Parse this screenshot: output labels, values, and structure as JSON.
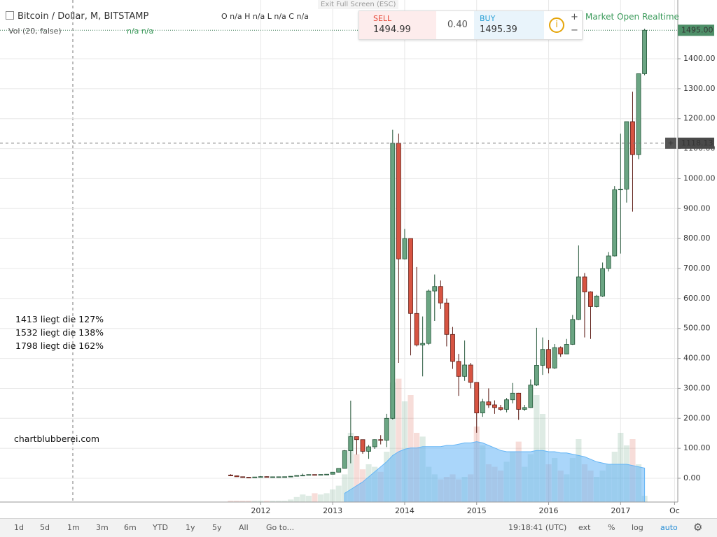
{
  "chart_data": {
    "type": "candlestick",
    "x": [
      "2011-08",
      "2011-09",
      "2011-10",
      "2011-11",
      "2011-12",
      "2012-01",
      "2012-02",
      "2012-03",
      "2012-04",
      "2012-05",
      "2012-06",
      "2012-07",
      "2012-08",
      "2012-09",
      "2012-10",
      "2012-11",
      "2012-12",
      "2013-01",
      "2013-02",
      "2013-03",
      "2013-04",
      "2013-05",
      "2013-06",
      "2013-07",
      "2013-08",
      "2013-09",
      "2013-10",
      "2013-11",
      "2013-12",
      "2014-01",
      "2014-02",
      "2014-03",
      "2014-04",
      "2014-05",
      "2014-06",
      "2014-07",
      "2014-08",
      "2014-09",
      "2014-10",
      "2014-11",
      "2014-12",
      "2015-01",
      "2015-02",
      "2015-03",
      "2015-04",
      "2015-05",
      "2015-06",
      "2015-07",
      "2015-08",
      "2015-09",
      "2015-10",
      "2015-11",
      "2015-12",
      "2016-01",
      "2016-02",
      "2016-03",
      "2016-04",
      "2016-05",
      "2016-06",
      "2016-07",
      "2016-08",
      "2016-09",
      "2016-10",
      "2016-11",
      "2016-12",
      "2017-01",
      "2017-02",
      "2017-03",
      "2017-04",
      "2017-05"
    ],
    "open": [
      10.9,
      8.2,
      5.1,
      3.3,
      3.0,
      4.3,
      5.5,
      4.9,
      4.9,
      5.0,
      5.2,
      6.7,
      9.3,
      10.1,
      12.4,
      11.2,
      12.6,
      13.5,
      20.4,
      33,
      92,
      139,
      129,
      90,
      105,
      129,
      127,
      200,
      1118,
      732,
      800,
      550,
      445,
      450,
      625,
      640,
      585,
      480,
      390,
      340,
      378,
      320,
      218,
      255,
      245,
      236,
      230,
      262,
      284,
      230,
      236,
      311,
      377,
      430,
      368,
      436,
      415,
      447,
      530,
      672,
      622,
      573,
      608,
      700,
      742,
      963,
      965,
      1190,
      1080,
      1350
    ],
    "high": [
      13.5,
      8.9,
      5.3,
      3.6,
      4.6,
      7.4,
      6.3,
      5.3,
      5.4,
      5.2,
      6.8,
      9.7,
      15.4,
      12.8,
      12.5,
      12.8,
      13.9,
      21,
      33,
      94,
      259,
      139,
      129,
      111,
      130,
      144,
      215,
      1163,
      1150,
      832,
      800,
      705,
      540,
      630,
      680,
      660,
      600,
      505,
      415,
      460,
      385,
      320,
      265,
      300,
      260,
      245,
      268,
      318,
      285,
      245,
      330,
      502,
      470,
      462,
      448,
      440,
      465,
      545,
      777,
      685,
      624,
      612,
      720,
      755,
      975,
      1150,
      1190,
      1290,
      1350,
      1500
    ],
    "low": [
      7.1,
      4.5,
      2.1,
      2.0,
      2.8,
      4.2,
      4.3,
      4.6,
      4.8,
      4.9,
      5.2,
      6.4,
      7.1,
      9.8,
      9.9,
      10.0,
      12.4,
      13.4,
      19.6,
      33,
      50,
      79,
      82,
      65,
      98,
      113,
      104,
      196,
      385,
      730,
      410,
      440,
      340,
      445,
      525,
      565,
      440,
      365,
      275,
      325,
      300,
      152,
      205,
      235,
      215,
      225,
      220,
      250,
      195,
      225,
      235,
      308,
      345,
      350,
      365,
      405,
      415,
      445,
      528,
      470,
      465,
      570,
      605,
      690,
      740,
      750,
      920,
      890,
      1065,
      1345
    ],
    "close": [
      8.2,
      5.1,
      3.3,
      3.0,
      4.3,
      5.5,
      4.9,
      4.9,
      5.0,
      5.2,
      6.7,
      9.3,
      10.1,
      12.4,
      11.2,
      12.6,
      13.5,
      20.4,
      33,
      92,
      139,
      129,
      90,
      105,
      129,
      127,
      200,
      1118,
      732,
      800,
      550,
      445,
      450,
      625,
      640,
      585,
      480,
      390,
      340,
      378,
      320,
      218,
      255,
      245,
      236,
      230,
      262,
      284,
      230,
      236,
      311,
      377,
      430,
      368,
      436,
      415,
      447,
      530,
      672,
      622,
      573,
      608,
      700,
      742,
      963,
      965,
      1190,
      1080,
      1350,
      1495
    ],
    "volume": [
      1,
      1,
      1,
      1,
      1,
      1,
      1,
      1,
      1,
      1,
      2,
      4,
      6,
      5,
      7,
      6,
      7,
      10,
      13,
      22,
      55,
      38,
      26,
      30,
      28,
      24,
      40,
      95,
      98,
      80,
      85,
      55,
      52,
      28,
      22,
      18,
      20,
      22,
      18,
      20,
      22,
      60,
      45,
      30,
      28,
      25,
      32,
      40,
      48,
      28,
      38,
      85,
      70,
      30,
      35,
      25,
      22,
      35,
      50,
      30,
      25,
      20,
      25,
      30,
      40,
      55,
      45,
      50,
      30,
      5
    ],
    "volume_ma": [
      null,
      null,
      null,
      null,
      null,
      null,
      null,
      null,
      null,
      null,
      null,
      null,
      null,
      null,
      null,
      null,
      null,
      null,
      null,
      7,
      10,
      13,
      16,
      20,
      24,
      28,
      32,
      37,
      40,
      42,
      43,
      43,
      44,
      44,
      44,
      44,
      45,
      45,
      46,
      47,
      47,
      48,
      47,
      45,
      43,
      41,
      40,
      40,
      40,
      40,
      40,
      41,
      41,
      40,
      40,
      39,
      39,
      38,
      37,
      36,
      34,
      32,
      31,
      30,
      30,
      30,
      30,
      29,
      28,
      27
    ],
    "vlim": [
      0,
      100
    ],
    "up_color": "#6ba583",
    "down_color": "#d75442",
    "volume_ma_color": "#64b5f6",
    "xlim": [
      "2008-06",
      "2017-11"
    ],
    "xticks": [
      {
        "value": "2012-01",
        "label": "2012"
      },
      {
        "value": "2013-01",
        "label": "2013"
      },
      {
        "value": "2014-01",
        "label": "2014"
      },
      {
        "value": "2015-01",
        "label": "2015"
      },
      {
        "value": "2016-01",
        "label": "2016"
      },
      {
        "value": "2017-01",
        "label": "2017"
      },
      {
        "value": "2017-10",
        "label": "Oc"
      }
    ],
    "ylim": [
      -79.3,
      1582
    ],
    "yticks": [
      {
        "value": 0,
        "label": "0.00"
      },
      {
        "value": 100,
        "label": "100.00"
      },
      {
        "value": 200,
        "label": "200.00"
      },
      {
        "value": 300,
        "label": "300.00"
      },
      {
        "value": 400,
        "label": "400.00"
      },
      {
        "value": 500,
        "label": "500.00"
      },
      {
        "value": 600,
        "label": "600.00"
      },
      {
        "value": 700,
        "label": "700.00"
      },
      {
        "value": 800,
        "label": "800.00"
      },
      {
        "value": 900,
        "label": "900.00"
      },
      {
        "value": 1000,
        "label": "1000.00"
      },
      {
        "value": 1100,
        "label": "1100.00"
      },
      {
        "value": 1200,
        "label": "1200.00"
      },
      {
        "value": 1300,
        "label": "1300.00"
      },
      {
        "value": 1400,
        "label": "1400.00"
      }
    ],
    "grid": true,
    "last_price": {
      "value": 1495,
      "label": "1495.00"
    },
    "crosshair_price": {
      "value": 1118.13,
      "label": "1118.13"
    },
    "annotations": [
      "1413 liegt die 127%",
      "1532 liegt die 138%",
      "1798 liegt die 162%",
      "chartblubberei.com"
    ]
  },
  "ui": {
    "title": "Bitcoin / Dollar, M, BITSTAMP",
    "ohlc_legend": "O n/a H n/a L n/a C n/a",
    "volume_legend": "Vol (20, false)",
    "volume_values": "n/a n/a",
    "exit_fullscreen": "Exit Full Screen (ESC)",
    "sell_label": "SELL",
    "sell_price": "1494.99",
    "spread": "0.40",
    "buy_label": "BUY",
    "buy_price": "1495.39",
    "market_status": "Market Open",
    "realtime": "Realtime",
    "ranges": [
      "1d",
      "5d",
      "1m",
      "3m",
      "6m",
      "YTD",
      "1y",
      "5y",
      "All"
    ],
    "goto": "Go to...",
    "clock": "19:18:41 (UTC)",
    "options": [
      "ext",
      "%",
      "log",
      "auto"
    ]
  }
}
